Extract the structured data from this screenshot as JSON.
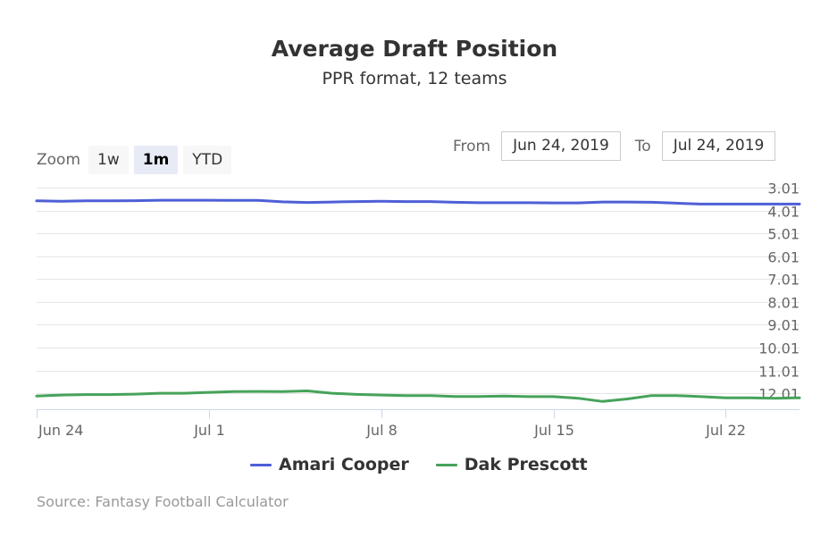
{
  "chart_data": {
    "type": "line",
    "title": "Average Draft Position",
    "subtitle": "PPR format, 12 teams",
    "y_axis": {
      "reversed": true,
      "range": [
        3.0,
        12.7
      ],
      "tick_values": [
        3,
        4,
        5,
        6,
        7,
        8,
        9,
        10,
        11,
        12
      ],
      "tick_labels": [
        "3.01",
        "4.01",
        "5.01",
        "6.01",
        "7.01",
        "8.01",
        "9.01",
        "10.01",
        "11.01",
        "12.01"
      ]
    },
    "x_axis": {
      "range": [
        0,
        31
      ],
      "tick_values": [
        0,
        7,
        14,
        21,
        28
      ],
      "tick_labels": [
        "Jun 24",
        "Jul 1",
        "Jul 8",
        "Jul 15",
        "Jul 22"
      ]
    },
    "series": [
      {
        "name": "Amari Cooper",
        "color": "#4e5fd6",
        "x": [
          0,
          1,
          2,
          3,
          4,
          5,
          6,
          7,
          8,
          9,
          10,
          11,
          12,
          13,
          14,
          15,
          16,
          17,
          18,
          19,
          20,
          21,
          22,
          23,
          24,
          25,
          26,
          27,
          28,
          29,
          30,
          31
        ],
        "values": [
          3.58,
          3.6,
          3.58,
          3.58,
          3.57,
          3.55,
          3.55,
          3.55,
          3.56,
          3.56,
          3.62,
          3.65,
          3.63,
          3.61,
          3.6,
          3.61,
          3.61,
          3.64,
          3.66,
          3.66,
          3.66,
          3.67,
          3.67,
          3.63,
          3.63,
          3.64,
          3.68,
          3.72,
          3.72,
          3.72,
          3.72,
          3.72
        ]
      },
      {
        "name": "Dak Prescott",
        "color": "#46a35a",
        "x": [
          0,
          1,
          2,
          3,
          4,
          5,
          6,
          7,
          8,
          9,
          10,
          11,
          12,
          13,
          14,
          15,
          16,
          17,
          18,
          19,
          20,
          21,
          22,
          23,
          24,
          25,
          26,
          27,
          28,
          29,
          30,
          31
        ],
        "values": [
          12.12,
          12.08,
          12.06,
          12.06,
          12.04,
          12.0,
          12.0,
          11.96,
          11.93,
          11.92,
          11.93,
          11.9,
          12.0,
          12.05,
          12.08,
          12.1,
          12.1,
          12.14,
          12.14,
          12.12,
          12.15,
          12.15,
          12.22,
          12.36,
          12.25,
          12.1,
          12.1,
          12.15,
          12.2,
          12.2,
          12.22,
          12.2
        ]
      }
    ],
    "legend_position": "bottom-center"
  },
  "range_selector": {
    "zoom_label": "Zoom",
    "buttons": [
      "1w",
      "1m",
      "YTD"
    ],
    "active_button": "1m",
    "from_label": "From",
    "from_value": "Jun 24, 2019",
    "to_label": "To",
    "to_value": "Jul 24, 2019"
  },
  "credits": "Source: Fantasy Football Calculator",
  "colors": {
    "grid": "#e6e6e6",
    "axis": "#ccd6eb",
    "label": "#666666"
  }
}
